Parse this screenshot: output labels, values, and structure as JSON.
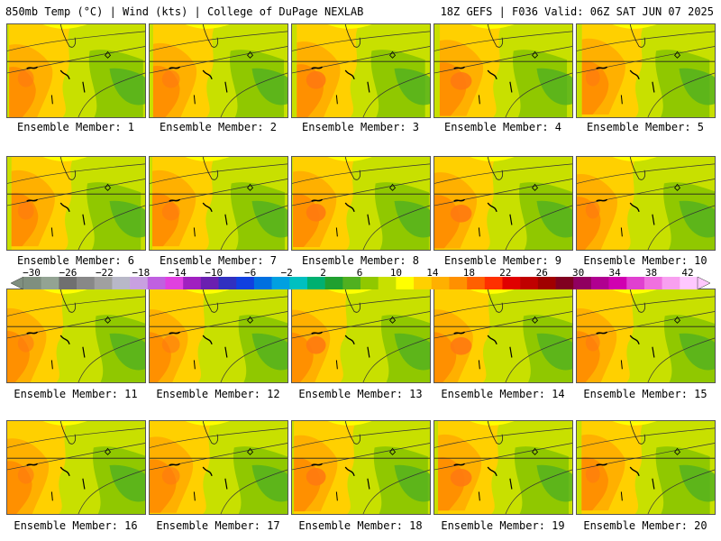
{
  "header": {
    "left_title": "850mb Temp (°C) | Wind (kts) | College of DuPage NEXLAB",
    "right_title": "18Z GEFS | F036 Valid: 06Z SAT JUN 07 2025"
  },
  "panels": [
    {
      "label": "Ensemble Member: 1"
    },
    {
      "label": "Ensemble Member: 2"
    },
    {
      "label": "Ensemble Member: 3"
    },
    {
      "label": "Ensemble Member: 4"
    },
    {
      "label": "Ensemble Member: 5"
    },
    {
      "label": "Ensemble Member: 6"
    },
    {
      "label": "Ensemble Member: 7"
    },
    {
      "label": "Ensemble Member: 8"
    },
    {
      "label": "Ensemble Member: 9"
    },
    {
      "label": "Ensemble Member: 10"
    },
    {
      "label": "Ensemble Member: 11"
    },
    {
      "label": "Ensemble Member: 12"
    },
    {
      "label": "Ensemble Member: 13"
    },
    {
      "label": "Ensemble Member: 14"
    },
    {
      "label": "Ensemble Member: 15"
    },
    {
      "label": "Ensemble Member: 16"
    },
    {
      "label": "Ensemble Member: 17"
    },
    {
      "label": "Ensemble Member: 18"
    },
    {
      "label": "Ensemble Member: 19"
    },
    {
      "label": "Ensemble Member: 20"
    }
  ],
  "colorbar": {
    "tick_labels": [
      "−30",
      "−26",
      "−22",
      "−18",
      "−14",
      "−10",
      "−6",
      "−2",
      "2",
      "6",
      "10",
      "14",
      "18",
      "22",
      "26",
      "30",
      "34",
      "38",
      "42"
    ],
    "colors": [
      "#7f8f7f",
      "#93a393",
      "#707070",
      "#888888",
      "#a0a0a0",
      "#b8b8c8",
      "#c8a0e0",
      "#c060e0",
      "#e040e0",
      "#a020c0",
      "#6a20b0",
      "#3030c0",
      "#1040e0",
      "#0070e0",
      "#00a0e0",
      "#00c0c0",
      "#00b070",
      "#20a030",
      "#50b020",
      "#90c800",
      "#c8e000",
      "#ffff00",
      "#ffd000",
      "#ffb000",
      "#ff9000",
      "#ff6000",
      "#ff3000",
      "#e00000",
      "#c00000",
      "#a00000",
      "#800020",
      "#900060",
      "#b00090",
      "#d000b0",
      "#e040d0",
      "#f070e0",
      "#f8a0f0",
      "#ffc8ff"
    ]
  }
}
